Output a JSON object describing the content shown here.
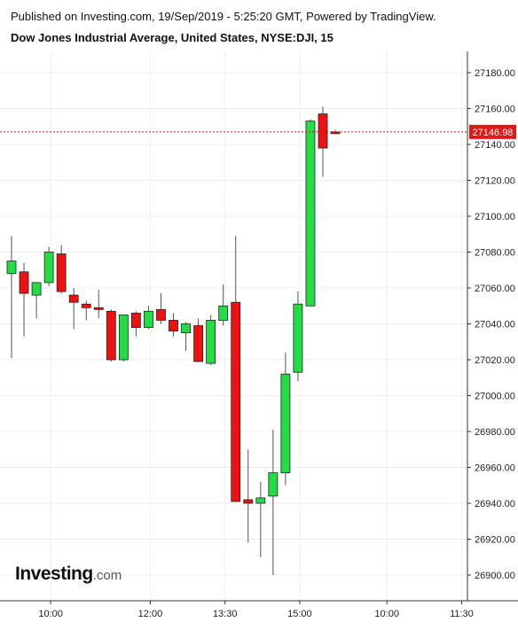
{
  "header": {
    "published": "Published on Investing.com, 19/Sep/2019 - 5:25:20 GMT, Powered by TradingView.",
    "title": "Dow Jones Industrial Average, United States, NYSE:DJI, 15"
  },
  "logo": {
    "brand": "Investing",
    "suffix": ".com"
  },
  "colors": {
    "up": "#22dd44",
    "down": "#ee1111",
    "wick": "#555555",
    "grid": "#eeeeee",
    "price_line": "#e01818",
    "price_label_bg": "#e01818"
  },
  "chart_data": {
    "type": "candlestick",
    "title": "Dow Jones Industrial Average, United States, NYSE:DJI, 15",
    "ylim": [
      26890,
      27195
    ],
    "y_ticks": [
      "27180.00",
      "27160.00",
      "27140.00",
      "27120.00",
      "27100.00",
      "27080.00",
      "27060.00",
      "27040.00",
      "27020.00",
      "27000.00",
      "26980.00",
      "26960.00",
      "26940.00",
      "26920.00",
      "26900.00"
    ],
    "x_ticks": [
      {
        "label": "10:00",
        "idx": 3
      },
      {
        "label": "12:00",
        "idx": 11
      },
      {
        "label": "13:30",
        "idx": 17
      },
      {
        "label": "15:00",
        "idx": 23
      },
      {
        "label": "10:00",
        "idx": 30
      },
      {
        "label": "11:30",
        "idx": 36
      }
    ],
    "last_price": 27146.98,
    "last_price_label": "27146.98",
    "candles": [
      {
        "o": 27068,
        "h": 27089,
        "l": 27021,
        "c": 27075
      },
      {
        "o": 27069,
        "h": 27074,
        "l": 27033,
        "c": 27057
      },
      {
        "o": 27056,
        "h": 27063,
        "l": 27043,
        "c": 27063
      },
      {
        "o": 27063,
        "h": 27083,
        "l": 27061,
        "c": 27080
      },
      {
        "o": 27079,
        "h": 27084,
        "l": 27057,
        "c": 27058
      },
      {
        "o": 27056,
        "h": 27060,
        "l": 27037,
        "c": 27052
      },
      {
        "o": 27051,
        "h": 27053,
        "l": 27042,
        "c": 27049
      },
      {
        "o": 27049,
        "h": 27059,
        "l": 27043,
        "c": 27048
      },
      {
        "o": 27047,
        "h": 27048,
        "l": 27019,
        "c": 27020
      },
      {
        "o": 27020,
        "h": 27045,
        "l": 27019,
        "c": 27045
      },
      {
        "o": 27046,
        "h": 27047,
        "l": 27033,
        "c": 27038
      },
      {
        "o": 27038,
        "h": 27050,
        "l": 27037,
        "c": 27047
      },
      {
        "o": 27048,
        "h": 27057,
        "l": 27040,
        "c": 27042
      },
      {
        "o": 27042,
        "h": 27046,
        "l": 27033,
        "c": 27036
      },
      {
        "o": 27035,
        "h": 27041,
        "l": 27025,
        "c": 27040
      },
      {
        "o": 27039,
        "h": 27043,
        "l": 27019,
        "c": 27019
      },
      {
        "o": 27018,
        "h": 27045,
        "l": 27017,
        "c": 27042
      },
      {
        "o": 27042,
        "h": 27062,
        "l": 27039,
        "c": 27050
      },
      {
        "o": 27052,
        "h": 27089,
        "l": 26941,
        "c": 26941
      },
      {
        "o": 26942,
        "h": 26970,
        "l": 26918,
        "c": 26940
      },
      {
        "o": 26940,
        "h": 26952,
        "l": 26910,
        "c": 26943
      },
      {
        "o": 26944,
        "h": 26981,
        "l": 26900,
        "c": 26957
      },
      {
        "o": 26957,
        "h": 27024,
        "l": 26950,
        "c": 27012
      },
      {
        "o": 27013,
        "h": 27058,
        "l": 27008,
        "c": 27051
      },
      {
        "o": 27050,
        "h": 27154,
        "l": 27050,
        "c": 27153
      },
      {
        "o": 27157,
        "h": 27161,
        "l": 27122,
        "c": 27138
      },
      {
        "o": 27147,
        "h": 27148,
        "l": 27146,
        "c": 27146
      }
    ]
  }
}
